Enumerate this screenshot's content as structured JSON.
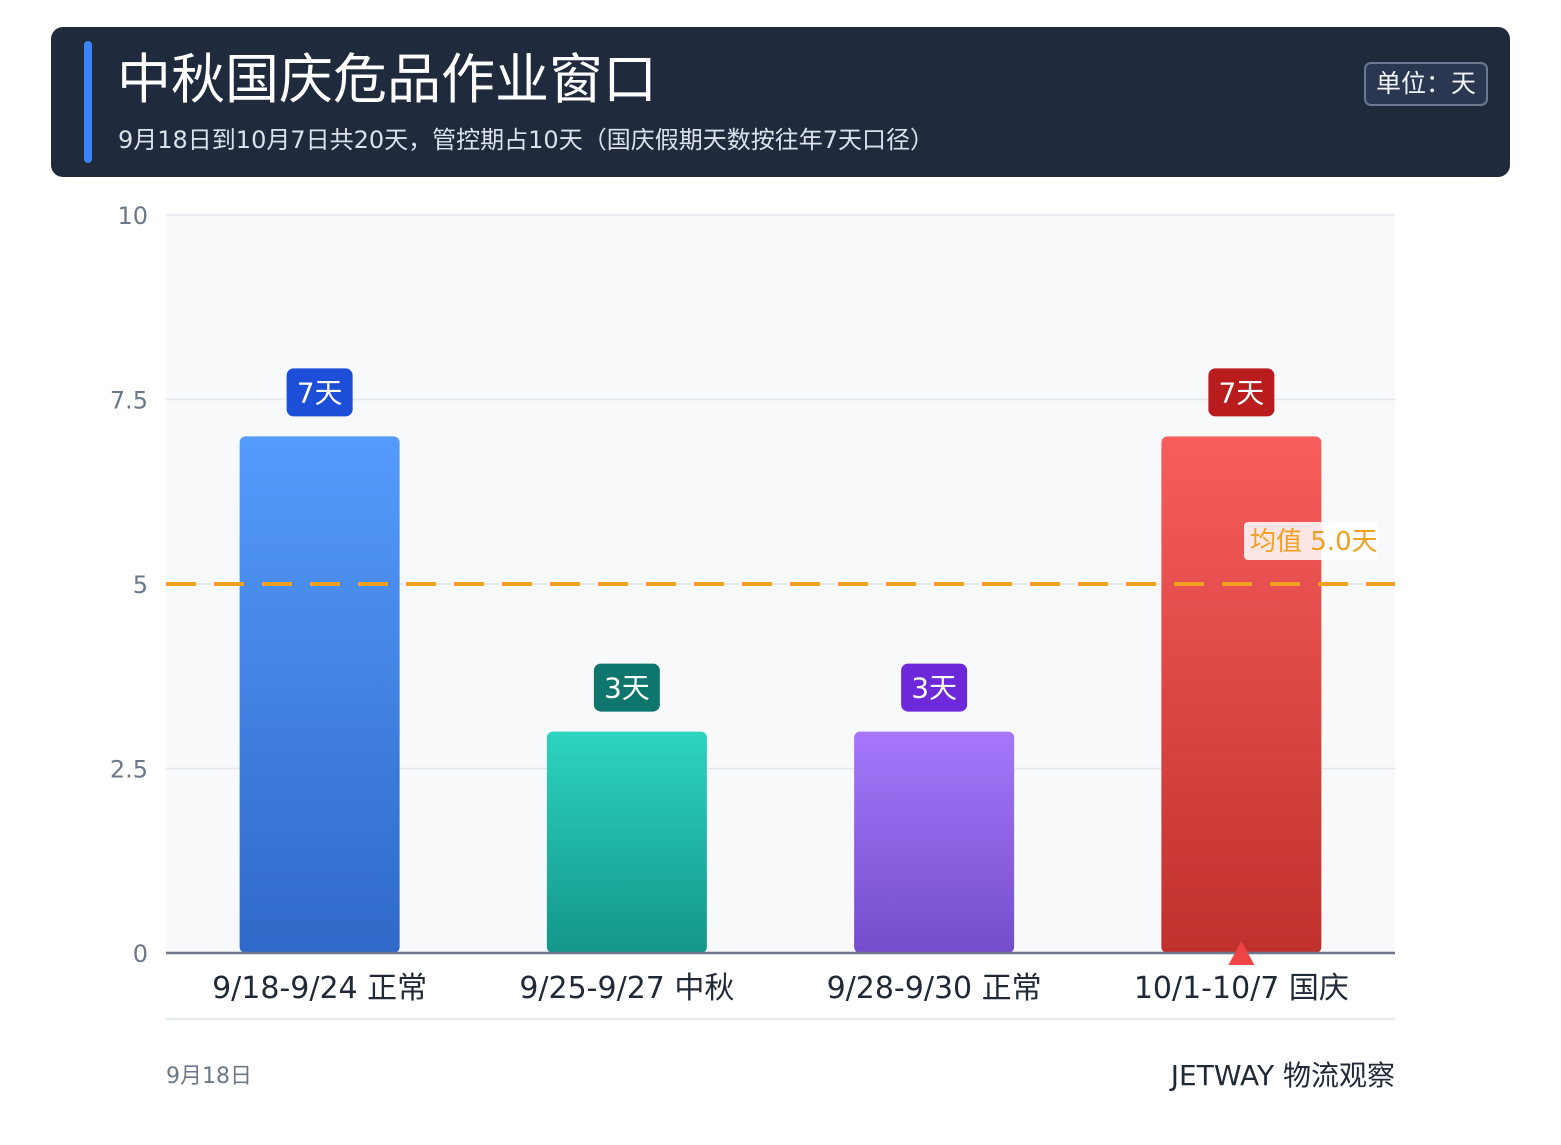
{
  "header": {
    "title": "中秋国庆危品作业窗口",
    "subtitle": "9月18日到10月7日共20天，管控期占10天（国庆假期天数按往年7天口径）",
    "unit": "单位：天"
  },
  "chart_data": {
    "type": "bar",
    "categories": [
      "9/18-9/24 正常",
      "9/25-9/27 中秋",
      "9/28-9/30 正常",
      "10/1-10/7 国庆"
    ],
    "values": [
      7,
      3,
      3,
      7
    ],
    "value_labels": [
      "7天",
      "3天",
      "3天",
      "7天"
    ],
    "bar_colors_top": [
      "#559bfb",
      "#2dd4bf",
      "#a677fa",
      "#f75d5d"
    ],
    "bar_colors_bottom": [
      "#2f69c8",
      "#13968a",
      "#744dcc",
      "#c0312e"
    ],
    "label_colors": [
      "#1d4ed8",
      "#0f766e",
      "#6d28d9",
      "#b91c1c"
    ],
    "yticks": [
      0,
      2.5,
      5,
      7.5,
      10
    ],
    "ytick_labels": [
      "0",
      "2.5",
      "5",
      "7.5",
      "10"
    ],
    "ylim": [
      0,
      10
    ],
    "grid": true,
    "mean": {
      "value": 5.0,
      "label": "均值 5.0天",
      "color": "#f0a020"
    },
    "marker_category_index": 3,
    "marker_color": "#ef4444"
  },
  "footer": {
    "date": "9月18日",
    "brand": "JETWAY 物流观察"
  }
}
